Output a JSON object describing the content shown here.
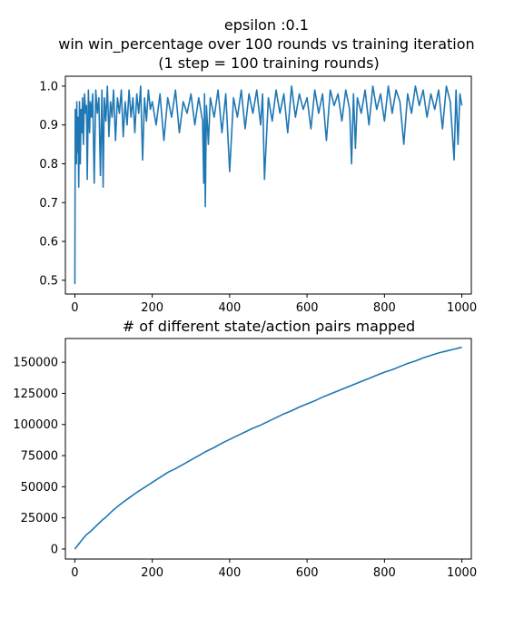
{
  "chart_data": [
    {
      "type": "line",
      "title": "epsilon :0.1\nwin win_percentage over 100 rounds vs training iteration\n(1 step = 100 training rounds)",
      "xlabel": "",
      "ylabel": "",
      "xlim": [
        -24.5,
        1024.5
      ],
      "ylim": [
        0.4645,
        1.0255
      ],
      "xticks": [
        0,
        200,
        400,
        600,
        800,
        1000
      ],
      "xtick_labels": [
        "0",
        "200",
        "400",
        "600",
        "800",
        "1000"
      ],
      "yticks": [
        0.5,
        0.6,
        0.7,
        0.8,
        0.9,
        1.0
      ],
      "ytick_labels": [
        "0.5",
        "0.6",
        "0.7",
        "0.8",
        "0.9",
        "1.0"
      ],
      "grid": false,
      "legend": "none",
      "series": [
        {
          "color": "#1f77b4",
          "x": [
            0,
            1,
            2,
            3,
            4,
            5,
            6,
            8,
            10,
            12,
            14,
            16,
            18,
            20,
            22,
            25,
            28,
            30,
            32,
            35,
            38,
            40,
            43,
            46,
            50,
            54,
            58,
            62,
            66,
            70,
            73,
            76,
            80,
            84,
            88,
            92,
            96,
            100,
            105,
            110,
            115,
            120,
            125,
            130,
            135,
            140,
            145,
            150,
            155,
            160,
            165,
            170,
            175,
            180,
            185,
            190,
            195,
            200,
            210,
            220,
            230,
            240,
            250,
            260,
            270,
            280,
            290,
            300,
            310,
            320,
            330,
            333,
            335,
            337,
            340,
            345,
            350,
            360,
            370,
            380,
            390,
            400,
            410,
            420,
            430,
            440,
            450,
            460,
            470,
            480,
            485,
            490,
            500,
            510,
            520,
            530,
            540,
            550,
            560,
            570,
            580,
            590,
            600,
            610,
            620,
            630,
            640,
            650,
            660,
            670,
            680,
            690,
            700,
            710,
            715,
            720,
            725,
            730,
            740,
            750,
            760,
            770,
            780,
            790,
            800,
            810,
            820,
            830,
            840,
            850,
            860,
            870,
            880,
            890,
            900,
            910,
            920,
            930,
            940,
            950,
            960,
            970,
            980,
            985,
            990,
            995,
            1000
          ],
          "values": [
            0.49,
            0.94,
            0.85,
            0.93,
            0.8,
            0.96,
            0.83,
            0.92,
            0.74,
            0.96,
            0.8,
            0.94,
            0.88,
            0.97,
            0.85,
            0.98,
            0.93,
            0.95,
            0.76,
            0.99,
            0.88,
            0.96,
            0.92,
            0.98,
            0.75,
            0.99,
            0.93,
            0.97,
            0.77,
            0.99,
            0.74,
            0.97,
            0.91,
            1.0,
            0.87,
            0.96,
            0.92,
            0.99,
            0.86,
            0.97,
            0.93,
            0.99,
            0.87,
            0.96,
            0.9,
            0.99,
            0.92,
            0.97,
            0.88,
            0.98,
            0.93,
            1.0,
            0.81,
            0.97,
            0.91,
            0.99,
            0.94,
            0.96,
            0.9,
            0.98,
            0.86,
            0.97,
            0.92,
            0.99,
            0.88,
            0.96,
            0.93,
            0.98,
            0.9,
            0.97,
            0.91,
            0.75,
            0.98,
            0.69,
            0.95,
            0.85,
            0.97,
            0.92,
            0.99,
            0.88,
            0.98,
            0.78,
            0.97,
            0.92,
            0.99,
            0.89,
            0.98,
            0.93,
            0.99,
            0.9,
            0.98,
            0.76,
            0.97,
            0.91,
            0.99,
            0.93,
            0.98,
            0.88,
            1.0,
            0.92,
            0.98,
            0.94,
            0.97,
            0.89,
            0.99,
            0.93,
            0.98,
            0.86,
            0.99,
            0.95,
            0.98,
            0.91,
            0.99,
            0.94,
            0.8,
            0.98,
            0.84,
            0.97,
            0.93,
            0.99,
            0.9,
            1.0,
            0.94,
            0.98,
            0.91,
            1.0,
            0.93,
            0.99,
            0.96,
            0.85,
            0.98,
            0.93,
            1.0,
            0.95,
            0.99,
            0.92,
            0.98,
            0.94,
            0.99,
            0.89,
            1.0,
            0.96,
            0.81,
            0.99,
            0.85,
            0.98,
            0.95
          ]
        }
      ]
    },
    {
      "type": "line",
      "title": "# of different state/action pairs mapped",
      "xlabel": "",
      "ylabel": "",
      "xlim": [
        -24.5,
        1024.5
      ],
      "ylim": [
        -8050,
        169050
      ],
      "xticks": [
        0,
        200,
        400,
        600,
        800,
        1000
      ],
      "xtick_labels": [
        "0",
        "200",
        "400",
        "600",
        "800",
        "1000"
      ],
      "yticks": [
        0,
        25000,
        50000,
        75000,
        100000,
        125000,
        150000
      ],
      "ytick_labels": [
        "0",
        "25000",
        "50000",
        "75000",
        "100000",
        "125000",
        "150000"
      ],
      "grid": false,
      "legend": "none",
      "series": [
        {
          "color": "#1f77b4",
          "x": [
            0,
            10,
            20,
            30,
            40,
            50,
            60,
            70,
            80,
            90,
            100,
            120,
            140,
            160,
            180,
            200,
            220,
            240,
            260,
            280,
            300,
            320,
            340,
            360,
            380,
            400,
            420,
            440,
            460,
            480,
            500,
            520,
            540,
            560,
            580,
            600,
            620,
            640,
            660,
            680,
            700,
            720,
            740,
            760,
            780,
            800,
            820,
            840,
            860,
            880,
            900,
            920,
            940,
            960,
            980,
            1000
          ],
          "values": [
            0,
            4000,
            8000,
            11500,
            14000,
            17000,
            20000,
            23000,
            25500,
            28500,
            31500,
            36500,
            41000,
            45500,
            49500,
            53500,
            57500,
            61500,
            64500,
            68000,
            71500,
            75000,
            78500,
            81500,
            85000,
            88000,
            91000,
            94000,
            97000,
            99500,
            102500,
            105500,
            108500,
            111000,
            114000,
            116500,
            119000,
            122000,
            124500,
            127000,
            129500,
            132000,
            134500,
            137000,
            139500,
            142000,
            144000,
            146500,
            149000,
            151000,
            153500,
            155500,
            157500,
            159000,
            160500,
            162000
          ]
        }
      ]
    }
  ]
}
